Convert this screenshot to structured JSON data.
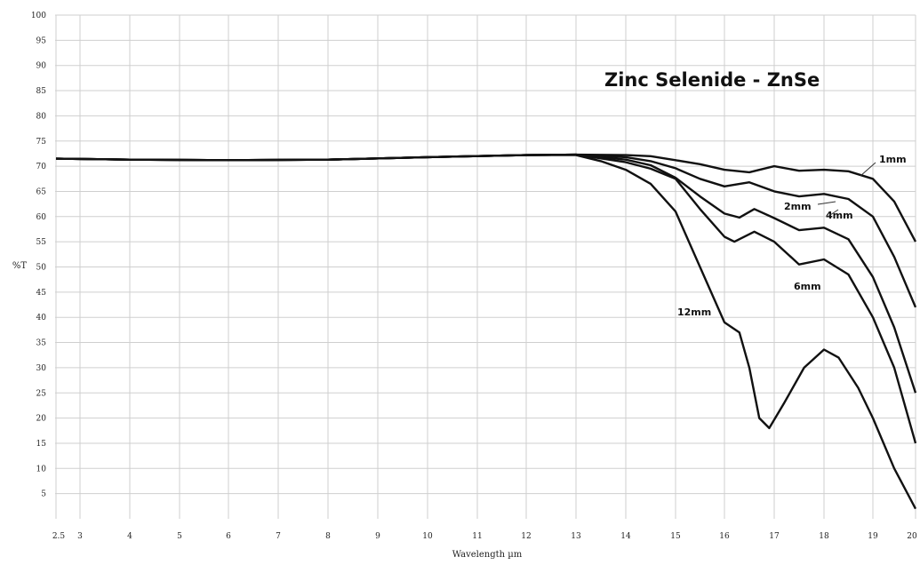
{
  "chart_data": {
    "type": "line",
    "title": "Zinc Selenide - ZnSe",
    "xlabel": "Wavelength µm",
    "ylabel": "%T",
    "xlim": [
      2.5,
      20
    ],
    "ylim": [
      0,
      100
    ],
    "x_ticks": [
      "2.5",
      "3",
      "4",
      "5",
      "6",
      "7",
      "8",
      "9",
      "10",
      "11",
      "12",
      "13",
      "14",
      "15",
      "16",
      "17",
      "18",
      "19",
      "20"
    ],
    "y_ticks": [
      "5",
      "10",
      "15",
      "20",
      "25",
      "30",
      "35",
      "40",
      "45",
      "50",
      "55",
      "60",
      "65",
      "70",
      "75",
      "80",
      "85",
      "90",
      "95",
      "100"
    ],
    "grid": true,
    "series": [
      {
        "name": "1mm",
        "x": [
          2.5,
          4,
          6,
          8,
          10,
          12,
          13,
          14,
          14.5,
          15,
          15.5,
          16,
          16.5,
          17,
          17.5,
          18,
          18.5,
          19,
          19.5,
          20
        ],
        "y": [
          71.5,
          71.3,
          71.2,
          71.3,
          71.8,
          72.2,
          72.3,
          72.2,
          72,
          71.2,
          70.4,
          69.3,
          68.8,
          70,
          69.1,
          69.3,
          69,
          67.5,
          63,
          55
        ]
      },
      {
        "name": "2mm",
        "x": [
          2.5,
          4,
          6,
          8,
          10,
          12,
          13,
          14,
          14.5,
          15,
          15.5,
          16,
          16.5,
          17,
          17.5,
          18,
          18.5,
          19,
          19.5,
          20
        ],
        "y": [
          71.5,
          71.3,
          71.2,
          71.3,
          71.8,
          72.2,
          72.3,
          71.8,
          71,
          69.6,
          67.5,
          66,
          66.8,
          65,
          64,
          64.5,
          63.5,
          60,
          52,
          42
        ]
      },
      {
        "name": "4mm",
        "x": [
          2.5,
          4,
          6,
          8,
          10,
          12,
          13,
          14,
          14.5,
          15,
          15.5,
          16,
          16.3,
          16.6,
          17,
          17.5,
          18,
          18.5,
          19,
          19.5,
          20
        ],
        "y": [
          71.5,
          71.3,
          71.2,
          71.3,
          71.8,
          72.2,
          72.3,
          71.3,
          70.2,
          67.7,
          64,
          60.6,
          59.8,
          61.5,
          59.7,
          57.3,
          57.8,
          55.5,
          48,
          38,
          25
        ]
      },
      {
        "name": "6mm",
        "x": [
          2.5,
          4,
          6,
          8,
          10,
          12,
          13,
          14,
          14.5,
          15,
          15.5,
          16,
          16.2,
          16.6,
          17,
          17.5,
          18,
          18.5,
          19,
          19.5,
          20
        ],
        "y": [
          71.5,
          71.3,
          71.2,
          71.3,
          71.8,
          72.2,
          72.3,
          70.8,
          69.5,
          67.5,
          61.5,
          56,
          55,
          57,
          55,
          50.5,
          51.5,
          48.5,
          40,
          30,
          15
        ]
      },
      {
        "name": "12mm",
        "x": [
          2.5,
          4,
          6,
          8,
          10,
          12,
          13,
          13.5,
          14,
          14.5,
          15,
          15.5,
          16,
          16.3,
          16.5,
          16.7,
          16.9,
          17.2,
          17.6,
          18,
          18.3,
          18.7,
          19,
          19.5,
          20
        ],
        "y": [
          71.5,
          71.3,
          71.2,
          71.3,
          71.8,
          72.2,
          72.2,
          71,
          69.3,
          66.5,
          61,
          50,
          39,
          37,
          30,
          20,
          18,
          23,
          30,
          33.6,
          32,
          26,
          20,
          10,
          2
        ]
      }
    ]
  }
}
